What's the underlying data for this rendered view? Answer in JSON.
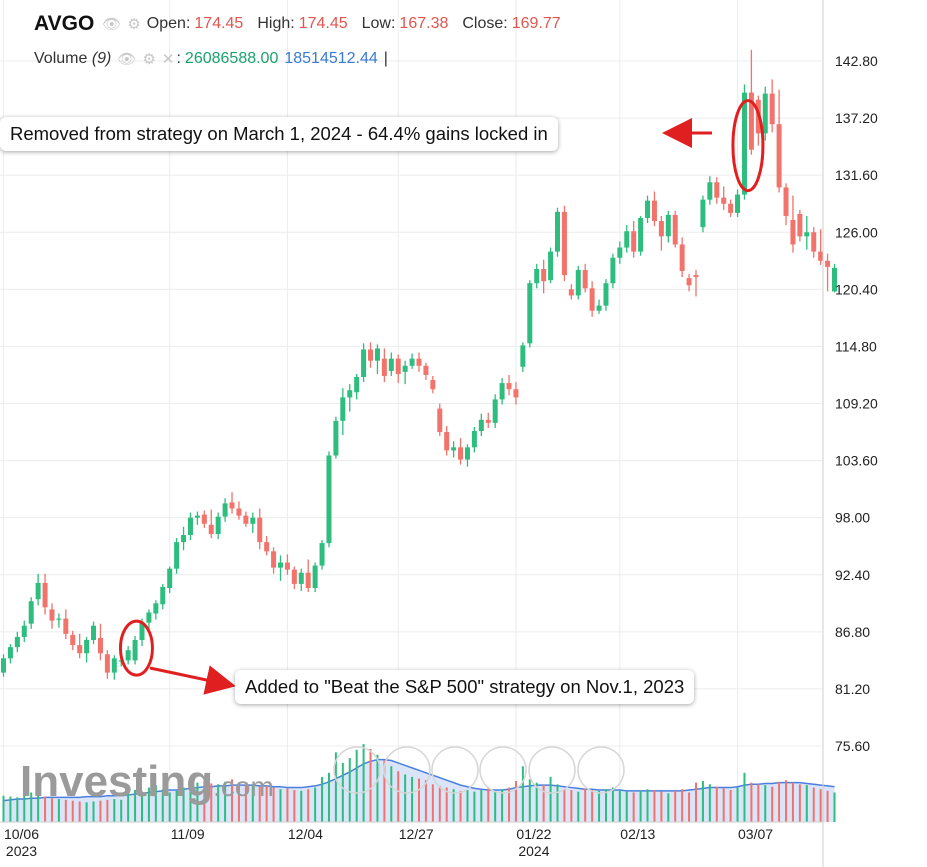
{
  "header": {
    "symbol": "AVGO",
    "open_label": "Open:",
    "open": "174.45",
    "high_label": "High:",
    "high": "174.45",
    "low_label": "Low:",
    "low": "167.38",
    "close_label": "Close:",
    "close": "169.77"
  },
  "volume": {
    "label": "Volume",
    "period": "(9)",
    "value_1": "26086588.00",
    "value_2": "18514512.44"
  },
  "annotations": {
    "removed": "Removed from strategy on March 1, 2024 - 64.4% gains locked in",
    "added": "Added to \"Beat the S&P 500\" strategy on Nov.1, 2023"
  },
  "watermark": {
    "brand": "Investing",
    "suffix": ".com"
  },
  "colors": {
    "up": "#2dbd7e",
    "down": "#f2736b",
    "grid": "#ececec",
    "volume_ma": "#4a7fe0",
    "annotation": "#e02020"
  },
  "chart_data": {
    "type": "candlestick",
    "y_ticks": [
      "142.80",
      "137.20",
      "131.60",
      "126.00",
      "120.40",
      "114.80",
      "109.20",
      "103.60",
      "98.00",
      "92.40",
      "86.80",
      "81.20",
      "75.60"
    ],
    "ylim": [
      70.0,
      148.4
    ],
    "x_ticks": [
      {
        "label": "10/06",
        "sub": "2023",
        "index": 0
      },
      {
        "label": "11/09",
        "sub": "",
        "index": 24
      },
      {
        "label": "12/04",
        "sub": "",
        "index": 41
      },
      {
        "label": "12/27",
        "sub": "",
        "index": 57
      },
      {
        "label": "01/22",
        "sub": "2024",
        "index": 74
      },
      {
        "label": "02/13",
        "sub": "",
        "index": 89
      },
      {
        "label": "03/07",
        "sub": "",
        "index": 106
      }
    ],
    "candles": [
      [
        82.8,
        84.6,
        82.4,
        84.2
      ],
      [
        84.2,
        85.6,
        83.7,
        85.3
      ],
      [
        85.3,
        86.8,
        84.8,
        86.3
      ],
      [
        86.3,
        87.9,
        85.8,
        87.4
      ],
      [
        87.6,
        90.2,
        87.1,
        89.8
      ],
      [
        90.0,
        92.5,
        89.4,
        91.6
      ],
      [
        91.6,
        92.5,
        88.5,
        89.2
      ],
      [
        89.0,
        89.6,
        87.1,
        87.9
      ],
      [
        88.0,
        88.6,
        87.2,
        88.1
      ],
      [
        88.1,
        89.0,
        86.1,
        86.6
      ],
      [
        86.5,
        86.9,
        85.0,
        85.5
      ],
      [
        85.5,
        86.6,
        84.2,
        84.7
      ],
      [
        84.7,
        86.3,
        83.8,
        86.0
      ],
      [
        86.0,
        87.8,
        85.6,
        87.4
      ],
      [
        86.2,
        87.6,
        84.0,
        84.7
      ],
      [
        84.6,
        85.0,
        82.2,
        82.8
      ],
      [
        82.8,
        84.5,
        82.1,
        84.2
      ],
      [
        84.0,
        84.8,
        83.4,
        84.0
      ],
      [
        84.0,
        85.4,
        83.6,
        85.0
      ],
      [
        84.0,
        86.4,
        83.6,
        86.0
      ],
      [
        86.0,
        88.1,
        85.4,
        87.7
      ],
      [
        87.7,
        89.0,
        87.0,
        88.7
      ],
      [
        88.6,
        89.9,
        88.0,
        89.6
      ],
      [
        89.5,
        91.5,
        89.0,
        91.2
      ],
      [
        91.1,
        93.2,
        90.6,
        93.0
      ],
      [
        93.0,
        96.0,
        92.5,
        95.6
      ],
      [
        95.6,
        97.1,
        94.8,
        96.3
      ],
      [
        96.3,
        98.5,
        95.8,
        98.0
      ],
      [
        98.0,
        98.6,
        97.3,
        98.2
      ],
      [
        98.3,
        98.7,
        97.0,
        97.4
      ],
      [
        97.3,
        98.8,
        96.0,
        96.4
      ],
      [
        96.4,
        98.5,
        95.9,
        98.1
      ],
      [
        98.1,
        99.9,
        97.6,
        99.4
      ],
      [
        99.5,
        100.5,
        98.4,
        98.9
      ],
      [
        98.9,
        99.6,
        97.8,
        98.2
      ],
      [
        98.2,
        98.6,
        97.1,
        97.4
      ],
      [
        97.4,
        98.5,
        96.5,
        98.0
      ],
      [
        98.0,
        98.9,
        94.9,
        95.6
      ],
      [
        95.6,
        96.2,
        94.3,
        94.7
      ],
      [
        94.7,
        95.1,
        92.5,
        93.1
      ],
      [
        93.1,
        94.3,
        91.8,
        93.6
      ],
      [
        93.6,
        94.4,
        92.4,
        92.9
      ],
      [
        92.9,
        93.2,
        91.0,
        91.5
      ],
      [
        91.5,
        93.0,
        90.8,
        92.6
      ],
      [
        92.6,
        93.9,
        90.7,
        91.1
      ],
      [
        91.1,
        93.6,
        90.7,
        93.3
      ],
      [
        93.3,
        95.8,
        92.9,
        95.5
      ],
      [
        95.5,
        104.5,
        95.1,
        104.1
      ],
      [
        104.1,
        107.9,
        103.8,
        107.5
      ],
      [
        107.5,
        110.7,
        106.1,
        109.8
      ],
      [
        109.8,
        111.1,
        108.4,
        110.5
      ],
      [
        110.3,
        112.1,
        109.6,
        111.8
      ],
      [
        111.8,
        115.1,
        111.3,
        114.5
      ],
      [
        114.5,
        115.2,
        112.7,
        113.4
      ],
      [
        113.4,
        115.0,
        112.1,
        114.6
      ],
      [
        113.6,
        114.6,
        111.3,
        111.9
      ],
      [
        112.4,
        114.2,
        111.9,
        113.6
      ],
      [
        113.6,
        114.0,
        111.2,
        112.1
      ],
      [
        112.3,
        113.4,
        111.1,
        112.9
      ],
      [
        112.9,
        114.1,
        112.6,
        113.6
      ],
      [
        113.6,
        114.2,
        112.3,
        112.9
      ],
      [
        112.9,
        113.2,
        111.5,
        112.0
      ],
      [
        111.5,
        111.9,
        110.2,
        110.6
      ],
      [
        108.7,
        109.2,
        106.0,
        106.4
      ],
      [
        106.4,
        107.0,
        104.1,
        104.6
      ],
      [
        104.6,
        105.5,
        103.9,
        104.9
      ],
      [
        104.9,
        105.8,
        103.2,
        103.7
      ],
      [
        103.7,
        105.2,
        103.0,
        104.9
      ],
      [
        104.9,
        106.9,
        104.4,
        106.5
      ],
      [
        106.5,
        108.2,
        106.0,
        107.6
      ],
      [
        107.6,
        108.3,
        106.8,
        107.3
      ],
      [
        107.3,
        110.1,
        106.8,
        109.6
      ],
      [
        109.6,
        111.7,
        109.1,
        111.2
      ],
      [
        111.2,
        112.0,
        110.0,
        110.6
      ],
      [
        110.6,
        111.3,
        109.1,
        109.8
      ],
      [
        112.8,
        115.2,
        112.3,
        114.9
      ],
      [
        115.1,
        121.3,
        114.7,
        121.0
      ],
      [
        121.0,
        122.9,
        120.5,
        122.4
      ],
      [
        122.4,
        123.3,
        120.0,
        121.2
      ],
      [
        121.3,
        124.5,
        121.0,
        124.1
      ],
      [
        124.1,
        128.4,
        123.6,
        128.0
      ],
      [
        128.0,
        128.6,
        121.2,
        121.8
      ],
      [
        120.4,
        120.9,
        119.4,
        119.8
      ],
      [
        119.8,
        122.7,
        119.4,
        122.3
      ],
      [
        122.3,
        122.9,
        120.1,
        120.5
      ],
      [
        120.5,
        121.2,
        117.7,
        118.3
      ],
      [
        118.3,
        119.4,
        118.0,
        118.8
      ],
      [
        118.8,
        121.4,
        118.3,
        121.0
      ],
      [
        121.0,
        123.9,
        120.5,
        123.5
      ],
      [
        123.5,
        125.1,
        122.9,
        124.5
      ],
      [
        124.5,
        126.7,
        124.0,
        126.1
      ],
      [
        126.1,
        127.1,
        123.5,
        124.1
      ],
      [
        124.1,
        127.6,
        123.7,
        127.4
      ],
      [
        127.4,
        129.6,
        126.9,
        129.1
      ],
      [
        129.1,
        130.0,
        126.6,
        127.1
      ],
      [
        127.1,
        127.6,
        124.2,
        125.6
      ],
      [
        125.6,
        128.1,
        125.0,
        127.7
      ],
      [
        127.7,
        128.1,
        124.5,
        124.8
      ],
      [
        124.8,
        125.5,
        121.6,
        122.2
      ],
      [
        121.5,
        121.9,
        120.2,
        120.8
      ],
      [
        121.8,
        122.3,
        119.7,
        121.6
      ],
      [
        126.5,
        129.6,
        126.0,
        129.2
      ],
      [
        129.2,
        131.5,
        128.7,
        130.9
      ],
      [
        130.9,
        131.4,
        128.8,
        129.4
      ],
      [
        129.4,
        130.5,
        128.2,
        128.8
      ],
      [
        128.8,
        129.2,
        127.5,
        127.9
      ],
      [
        127.9,
        130.2,
        127.5,
        129.7
      ],
      [
        129.7,
        140.5,
        129.2,
        139.7
      ],
      [
        139.7,
        143.9,
        133.6,
        134.1
      ],
      [
        139.0,
        139.4,
        134.5,
        135.7
      ],
      [
        135.7,
        140.3,
        135.0,
        139.6
      ],
      [
        139.6,
        141.0,
        135.8,
        136.6
      ],
      [
        136.6,
        140.0,
        129.9,
        130.4
      ],
      [
        130.4,
        130.8,
        126.7,
        127.6
      ],
      [
        127.2,
        129.6,
        124.0,
        124.8
      ],
      [
        127.8,
        128.2,
        125.1,
        125.6
      ],
      [
        125.6,
        127.6,
        124.3,
        126.0
      ],
      [
        126.0,
        126.5,
        123.5,
        124.1
      ],
      [
        124.1,
        126.3,
        122.8,
        123.2
      ],
      [
        123.2,
        123.9,
        120.2,
        122.6
      ],
      [
        120.2,
        122.9,
        120.1,
        122.5
      ]
    ],
    "volume_series": {
      "bars": [
        3.2,
        3.1,
        3.0,
        3.4,
        3.6,
        3.3,
        3.1,
        2.9,
        2.8,
        2.7,
        2.6,
        2.5,
        2.4,
        2.5,
        2.6,
        2.7,
        2.8,
        2.7,
        3.8,
        3.9,
        3.5,
        4.2,
        4.5,
        4.0,
        3.6,
        3.8,
        4.2,
        4.5,
        4.8,
        5.0,
        4.7,
        4.6,
        4.9,
        5.2,
        4.8,
        4.6,
        4.5,
        4.3,
        4.4,
        4.2,
        4.0,
        4.1,
        3.9,
        3.8,
        4.0,
        4.2,
        5.5,
        6.0,
        8.5,
        7.2,
        7.8,
        8.8,
        9.5,
        8.9,
        8.2,
        7.5,
        6.8,
        6.2,
        5.8,
        5.5,
        5.3,
        5.1,
        4.6,
        4.4,
        4.2,
        4.0,
        3.8,
        3.9,
        3.7,
        3.9,
        4.1,
        3.8,
        4.0,
        4.2,
        5.0,
        6.8,
        5.2,
        4.8,
        4.5,
        5.5,
        4.6,
        4.0,
        3.9,
        3.7,
        4.1,
        3.9,
        3.8,
        4.0,
        4.2,
        3.9,
        3.7,
        3.6,
        3.8,
        4.0,
        3.9,
        3.7,
        3.5,
        3.8,
        4.0,
        3.6,
        4.8,
        5.0,
        4.6,
        4.3,
        4.1,
        3.9,
        4.2,
        6.0,
        4.8,
        4.6,
        4.5,
        4.3,
        4.9,
        5.1,
        4.8,
        4.6,
        4.5,
        4.2,
        4.0,
        3.8,
        3.6
      ],
      "ma": [
        2.6,
        2.7,
        2.8,
        2.8,
        2.9,
        2.9,
        3.0,
        3.0,
        3.0,
        3.0,
        3.0,
        3.0,
        3.1,
        3.1,
        3.1,
        3.2,
        3.2,
        3.2,
        3.3,
        3.4,
        3.5,
        3.6,
        3.7,
        3.8,
        3.9,
        3.9,
        4.0,
        4.1,
        4.2,
        4.3,
        4.3,
        4.4,
        4.4,
        4.5,
        4.5,
        4.5,
        4.5,
        4.4,
        4.4,
        4.3,
        4.3,
        4.2,
        4.2,
        4.2,
        4.3,
        4.4,
        4.6,
        4.9,
        5.3,
        5.7,
        6.1,
        6.6,
        7.1,
        7.4,
        7.6,
        7.6,
        7.5,
        7.2,
        6.9,
        6.6,
        6.3,
        6.0,
        5.7,
        5.4,
        5.1,
        4.8,
        4.5,
        4.3,
        4.1,
        4.0,
        3.9,
        3.9,
        3.9,
        4.0,
        4.2,
        4.3,
        4.4,
        4.5,
        4.5,
        4.5,
        4.4,
        4.3,
        4.2,
        4.1,
        4.0,
        4.0,
        3.9,
        3.9,
        3.9,
        3.9,
        3.8,
        3.8,
        3.8,
        3.8,
        3.8,
        3.8,
        3.8,
        3.8,
        3.8,
        3.9,
        4.0,
        4.1,
        4.2,
        4.2,
        4.2,
        4.2,
        4.3,
        4.5,
        4.6,
        4.6,
        4.7,
        4.7,
        4.8,
        4.8,
        4.8,
        4.8,
        4.7,
        4.6,
        4.5,
        4.4,
        4.3
      ]
    }
  }
}
